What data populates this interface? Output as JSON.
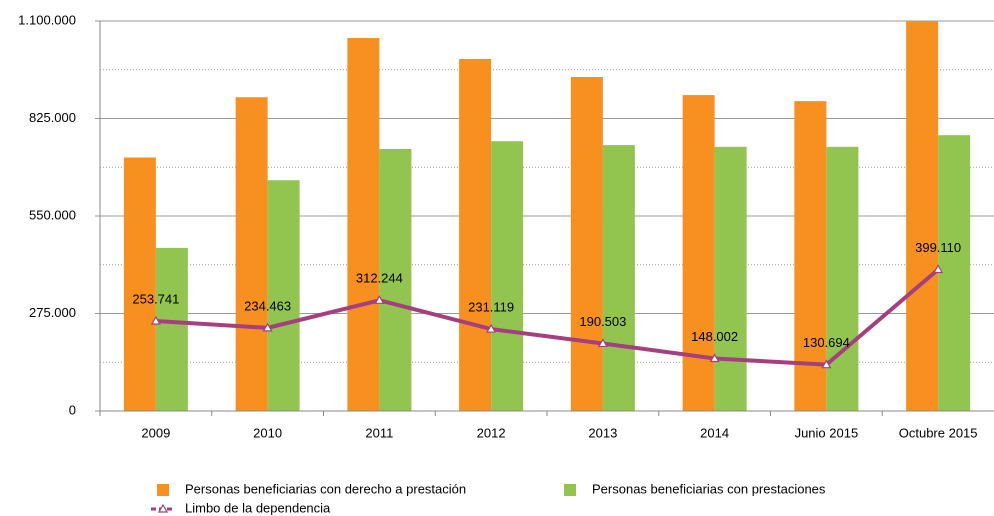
{
  "chart_data": {
    "type": "bar_line",
    "categories": [
      "2009",
      "2010",
      "2011",
      "2012",
      "2013",
      "2014",
      "Junio 2015",
      "Octubre 2015"
    ],
    "series": [
      {
        "name": "Personas beneficiarias con derecho a prestación",
        "type": "bar",
        "color": "#f7901e",
        "values": [
          715000,
          885000,
          1052000,
          993000,
          942000,
          891000,
          874000,
          1100000
        ]
      },
      {
        "name": "Personas beneficiarias con prestaciones",
        "type": "bar",
        "color": "#92c550",
        "values": [
          460000,
          651000,
          739000,
          761000,
          750000,
          745000,
          745000,
          778000
        ]
      },
      {
        "name": "Limbo de la dependencia",
        "type": "line",
        "color": "#a4407f",
        "values": [
          253741,
          234463,
          312244,
          231119,
          190503,
          148002,
          130694,
          399110
        ],
        "value_labels": [
          "253.741",
          "234.463",
          "312.244",
          "231.119",
          "190.503",
          "148.002",
          "130.694",
          "399.110"
        ]
      }
    ],
    "ylim": [
      0,
      1100000
    ],
    "yticks": [
      0,
      {
        "value": 275000,
        "label": "275.000"
      },
      {
        "value": 550000,
        "label": "550.000"
      },
      {
        "value": 825000,
        "label": "825.000"
      },
      {
        "value": 1100000,
        "label": "1.100.000"
      }
    ],
    "minor_yticks": [
      137500,
      412500,
      687500,
      962500
    ],
    "grid": true,
    "legend": "bottom"
  }
}
